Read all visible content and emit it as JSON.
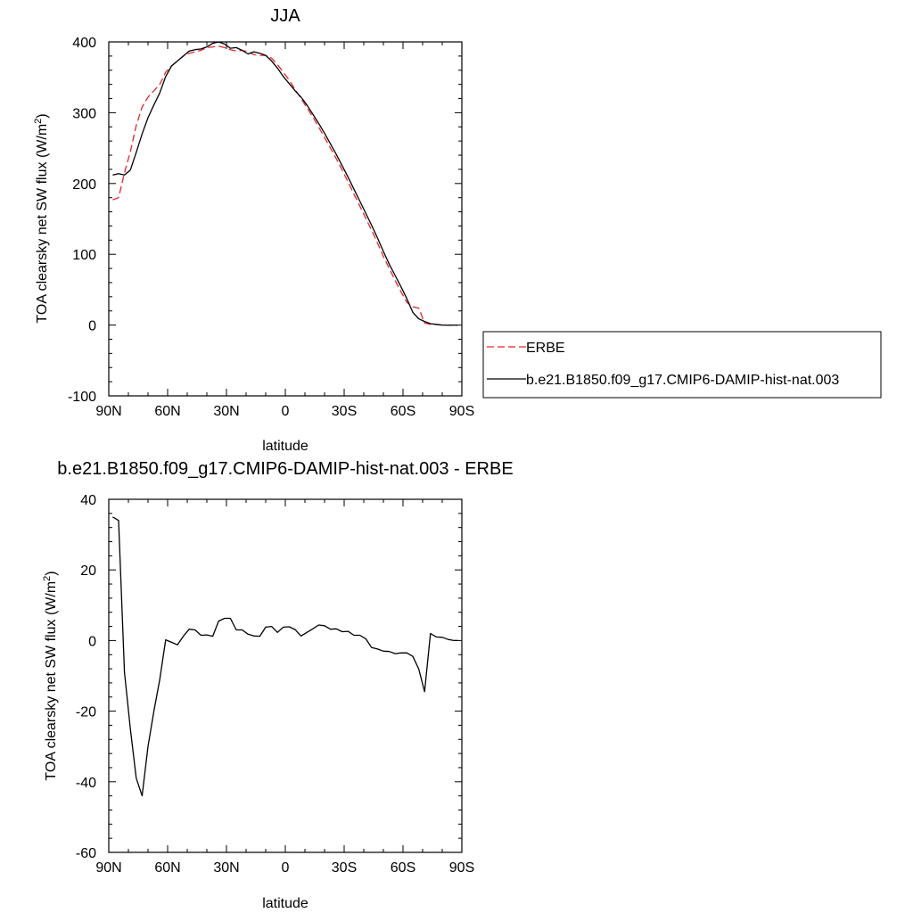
{
  "chart_data": [
    {
      "type": "line",
      "title": "JJA",
      "xlabel": "latitude",
      "ylabel": "TOA clearsky net SW flux (W/m",
      "ylabel_sup": "2",
      "ylabel_close": ")",
      "xlim": [
        90,
        -90
      ],
      "ylim": [
        -100,
        400
      ],
      "xticks": [
        {
          "value": 90,
          "label": "90N"
        },
        {
          "value": 60,
          "label": "60N"
        },
        {
          "value": 30,
          "label": "30N"
        },
        {
          "value": 0,
          "label": "0"
        },
        {
          "value": -30,
          "label": "30S"
        },
        {
          "value": -60,
          "label": "60S"
        },
        {
          "value": -90,
          "label": "90S"
        }
      ],
      "yticks": [
        {
          "value": 400,
          "label": "400"
        },
        {
          "value": 300,
          "label": "300"
        },
        {
          "value": 200,
          "label": "200"
        },
        {
          "value": 100,
          "label": "100"
        },
        {
          "value": 0,
          "label": "0"
        },
        {
          "value": -100,
          "label": "-100"
        }
      ],
      "legend": {
        "position": "right",
        "entries": [
          "ERBE",
          "b.e21.B1850.f09_g17.CMIP6-DAMIP-hist-nat.003"
        ]
      },
      "series": [
        {
          "name": "ERBE",
          "color": "#e8262a",
          "dash": "dashed",
          "x": [
            88,
            85,
            82,
            79,
            76,
            73,
            70,
            67,
            64,
            61,
            58,
            55,
            52,
            49,
            46,
            43,
            40,
            37,
            34,
            31,
            28,
            25,
            22,
            19,
            16,
            13,
            10,
            7,
            4,
            1,
            -2,
            -5,
            -8,
            -11,
            -14,
            -17,
            -20,
            -23,
            -26,
            -29,
            -32,
            -35,
            -38,
            -41,
            -44,
            -47,
            -50,
            -53,
            -56,
            -59,
            -62,
            -65,
            -68,
            -71,
            -74,
            -77,
            -80,
            -83,
            -86,
            -88
          ],
          "y": [
            177,
            180,
            215,
            245,
            282,
            308,
            322,
            331,
            340,
            357,
            366,
            373,
            380,
            384,
            386,
            388,
            392,
            393,
            394,
            392,
            389,
            387,
            388,
            386,
            382,
            381,
            381,
            377,
            368,
            357,
            346,
            333,
            320,
            307,
            294,
            280,
            265,
            250,
            235,
            219,
            202,
            185,
            168,
            151,
            134,
            116,
            97,
            80,
            63,
            47,
            32,
            26,
            24,
            3,
            1,
            1,
            0,
            0,
            0,
            0
          ]
        },
        {
          "name": "b.e21.B1850.f09_g17.CMIP6-DAMIP-hist-nat.003",
          "color": "#000000",
          "dash": "solid",
          "x": [
            88,
            85,
            82,
            79,
            76,
            73,
            70,
            67,
            64,
            61,
            58,
            55,
            52,
            49,
            46,
            43,
            40,
            37,
            34,
            31,
            28,
            25,
            22,
            19,
            16,
            13,
            10,
            7,
            4,
            1,
            -2,
            -5,
            -8,
            -11,
            -14,
            -17,
            -20,
            -23,
            -26,
            -29,
            -32,
            -35,
            -38,
            -41,
            -44,
            -47,
            -50,
            -53,
            -56,
            -59,
            -62,
            -65,
            -68,
            -71,
            -74,
            -77,
            -80,
            -83,
            -86,
            -88
          ],
          "y": [
            212,
            214,
            212,
            219,
            244,
            270,
            293,
            311,
            328,
            351,
            366,
            373,
            380,
            387,
            389,
            390,
            393,
            398,
            400,
            397,
            391,
            392,
            388,
            383,
            386,
            384,
            381,
            373,
            363,
            351,
            341,
            331,
            322,
            311,
            298,
            285,
            271,
            256,
            241,
            225,
            209,
            192,
            175,
            158,
            141,
            123,
            104,
            86,
            70,
            54,
            37,
            18,
            9,
            5,
            2,
            1,
            0,
            0,
            0,
            0
          ]
        }
      ]
    },
    {
      "type": "line",
      "title": "b.e21.B1850.f09_g17.CMIP6-DAMIP-hist-nat.003 - ERBE",
      "xlabel": "latitude",
      "ylabel": "TOA clearsky net SW flux (W/m",
      "ylabel_sup": "2",
      "ylabel_close": ")",
      "xlim": [
        90,
        -90
      ],
      "ylim": [
        -60,
        40
      ],
      "xticks": [
        {
          "value": 90,
          "label": "90N"
        },
        {
          "value": 60,
          "label": "60N"
        },
        {
          "value": 30,
          "label": "30N"
        },
        {
          "value": 0,
          "label": "0"
        },
        {
          "value": -30,
          "label": "30S"
        },
        {
          "value": -60,
          "label": "60S"
        },
        {
          "value": -90,
          "label": "90S"
        }
      ],
      "yticks": [
        {
          "value": 40,
          "label": "40"
        },
        {
          "value": 20,
          "label": "20"
        },
        {
          "value": 0,
          "label": "0"
        },
        {
          "value": -20,
          "label": "-20"
        },
        {
          "value": -40,
          "label": "-40"
        },
        {
          "value": -60,
          "label": "-60"
        }
      ],
      "series": [
        {
          "color": "#000000",
          "dash": "solid",
          "x": [
            88,
            85,
            82,
            79,
            76,
            73,
            70,
            67,
            64,
            61,
            58,
            55,
            52,
            49,
            46,
            43,
            40,
            37,
            34,
            31,
            28,
            25,
            22,
            19,
            16,
            13,
            10,
            7,
            4,
            1,
            -2,
            -5,
            -8,
            -11,
            -14,
            -17,
            -20,
            -23,
            -26,
            -29,
            -32,
            -35,
            -38,
            -41,
            -44,
            -47,
            -50,
            -53,
            -56,
            -59,
            -62,
            -65,
            -68,
            -71,
            -74,
            -77,
            -80,
            -83,
            -86,
            -88
          ],
          "y": [
            35,
            34,
            -9,
            -25,
            -39,
            -44,
            -30,
            -20,
            -11,
            0.2,
            -0.5,
            -1.2,
            1.2,
            3.2,
            3.0,
            1.5,
            1.6,
            1.2,
            5.5,
            6.3,
            6.3,
            3.0,
            3.0,
            1.8,
            1.3,
            1.2,
            3.8,
            4.0,
            2.3,
            3.8,
            3.9,
            3.1,
            1.3,
            2.3,
            3.3,
            4.4,
            4.2,
            3.2,
            3.3,
            2.5,
            2.6,
            1.5,
            1.5,
            0.5,
            -2.0,
            -2.4,
            -3.0,
            -3.1,
            -3.7,
            -3.5,
            -3.5,
            -4.5,
            -8.0,
            -14.5,
            2.0,
            1.0,
            0.9,
            0.3,
            0.0,
            0.0
          ]
        }
      ]
    }
  ]
}
